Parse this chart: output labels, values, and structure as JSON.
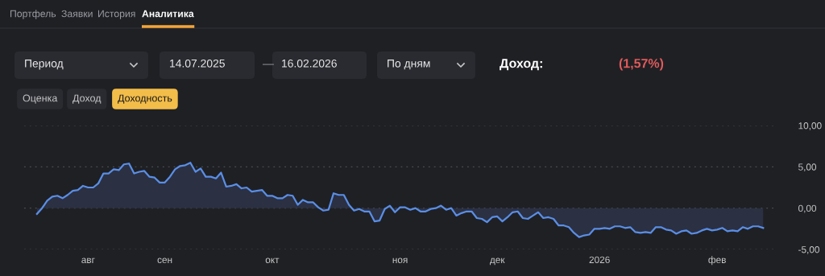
{
  "chart_data": {
    "type": "area",
    "categories": [
      null,
      null,
      null,
      null,
      null,
      null,
      null,
      null,
      null,
      null,
      "авг",
      null,
      null,
      null,
      null,
      null,
      null,
      null,
      null,
      null,
      null,
      null,
      null,
      null,
      null,
      "сен",
      null,
      null,
      null,
      null,
      null,
      null,
      null,
      null,
      null,
      null,
      null,
      null,
      null,
      null,
      null,
      null,
      null,
      null,
      null,
      null,
      "окт",
      null,
      null,
      null,
      null,
      null,
      null,
      null,
      null,
      null,
      null,
      null,
      null,
      null,
      null,
      null,
      null,
      null,
      null,
      null,
      null,
      null,
      null,
      null,
      null,
      "ноя",
      null,
      null,
      null,
      null,
      null,
      null,
      null,
      null,
      null,
      null,
      null,
      null,
      null,
      null,
      null,
      null,
      null,
      null,
      "дек",
      null,
      null,
      null,
      null,
      null,
      null,
      null,
      null,
      null,
      null,
      null,
      null,
      null,
      null,
      null,
      null,
      null,
      null,
      null,
      "2026",
      null,
      null,
      null,
      null,
      null,
      null,
      null,
      null,
      null,
      null,
      null,
      null,
      null,
      null,
      null,
      null,
      null,
      null,
      null,
      null,
      null,
      null,
      "фев",
      null,
      null,
      null,
      null,
      null,
      null,
      null,
      null,
      null
    ],
    "series": [
      {
        "color": "#5a8ee6",
        "values": [
          -0.7,
          0.0,
          0.9,
          1.4,
          1.5,
          1.2,
          1.6,
          2.1,
          2.2,
          2.7,
          2.5,
          2.5,
          3.0,
          4.2,
          4.2,
          4.7,
          4.6,
          5.3,
          5.4,
          4.2,
          4.4,
          4.5,
          3.8,
          3.7,
          3.1,
          3.1,
          3.8,
          4.7,
          5.1,
          5.2,
          5.5,
          4.4,
          4.8,
          3.8,
          3.8,
          3.6,
          4.3,
          2.6,
          2.7,
          2.9,
          2.4,
          2.5,
          2.0,
          2.1,
          2.2,
          1.5,
          1.5,
          1.2,
          1.2,
          1.6,
          1.5,
          0.4,
          1.0,
          0.7,
          0.7,
          0.1,
          -0.3,
          -0.2,
          1.8,
          1.6,
          1.6,
          0.4,
          -0.3,
          -0.1,
          -0.4,
          -0.4,
          -1.6,
          -1.5,
          -0.1,
          0.3,
          -0.5,
          0.1,
          0.1,
          -0.2,
          0.0,
          -0.4,
          -0.4,
          -0.1,
          0.0,
          0.3,
          -0.2,
          0.0,
          -0.9,
          -0.6,
          -0.4,
          -0.4,
          -1.2,
          -1.3,
          -1.7,
          -1.1,
          -1.0,
          -1.6,
          -1.1,
          -0.5,
          -0.4,
          -1.2,
          -1.3,
          -0.9,
          -0.5,
          -1.2,
          -1.1,
          -1.3,
          -2.1,
          -2.1,
          -2.3,
          -3.0,
          -3.5,
          -3.3,
          -3.2,
          -2.5,
          -2.5,
          -2.4,
          -2.5,
          -2.2,
          -2.2,
          -2.4,
          -2.3,
          -2.9,
          -3.0,
          -2.9,
          -3.0,
          -2.3,
          -2.3,
          -2.6,
          -2.7,
          -3.1,
          -2.8,
          -2.7,
          -3.1,
          -3.0,
          -2.7,
          -2.5,
          -2.7,
          -2.6,
          -2.4,
          -2.8,
          -2.7,
          -2.8,
          -2.3,
          -2.5,
          -2.2,
          -2.2,
          -2.4
        ]
      }
    ],
    "ylim": [
      -5,
      10
    ],
    "yticks": [
      {
        "value": -5,
        "label": "-5,00"
      },
      {
        "value": 0,
        "label": "0,00"
      },
      {
        "value": 5,
        "label": "5,00"
      },
      {
        "value": 10,
        "label": "10,00"
      }
    ],
    "grid": "y",
    "annotations": [
      "Портфель",
      "Заявки",
      "История",
      "Аналитика",
      "Период",
      "14.07.2025",
      "—",
      "16.02.2026",
      "По дням",
      "Доход:",
      "(1,57%)",
      "Оценка",
      "Доход",
      "Доходность"
    ]
  }
}
